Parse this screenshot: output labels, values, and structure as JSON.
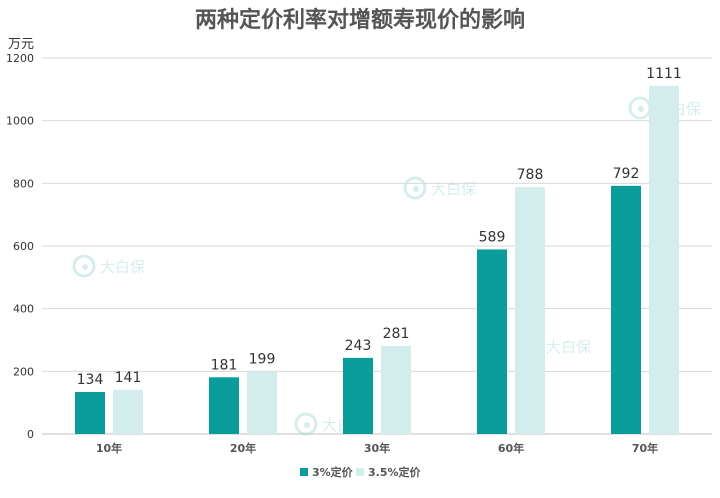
{
  "chart_data": {
    "type": "bar",
    "title": "两种定价利率对增额寿现价的影响",
    "ylabel": "万元",
    "xlabel": "",
    "categories": [
      "10年",
      "20年",
      "30年",
      "60年",
      "70年"
    ],
    "series": [
      {
        "name": "3%定价",
        "values": [
          134,
          181,
          243,
          589,
          792
        ]
      },
      {
        "name": "3.5%定价",
        "values": [
          141,
          199,
          281,
          788,
          1111
        ]
      }
    ],
    "ylim": [
      0,
      1200
    ],
    "yticks": [
      0,
      200,
      400,
      600,
      800,
      1000,
      1200
    ],
    "grid": true,
    "legend": "bottom"
  },
  "colors": {
    "series": [
      "#0a9b9b",
      "#d3ecec"
    ],
    "grid": "#d9d9d9",
    "watermark": "#b8dede"
  },
  "watermark": {
    "text": "大白保",
    "icon": "logo-circle-icon"
  }
}
